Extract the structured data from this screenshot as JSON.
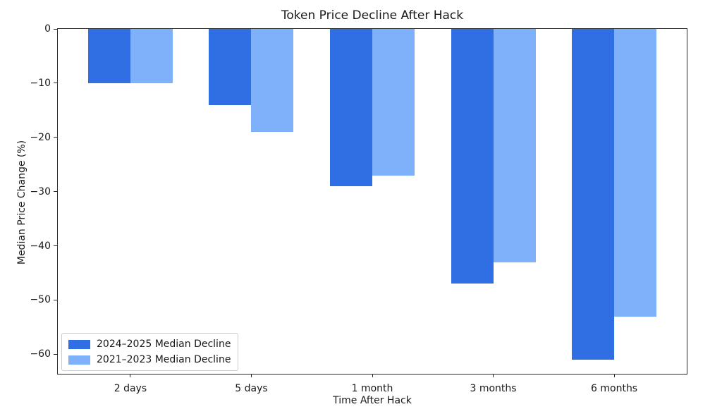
{
  "chart_data": {
    "type": "bar",
    "title": "Token Price Decline After Hack",
    "xlabel": "Time After Hack",
    "ylabel": "Median Price Change (%)",
    "categories": [
      "2 days",
      "5 days",
      "1 month",
      "3 months",
      "6 months"
    ],
    "series": [
      {
        "name": "2024–2025 Median Decline",
        "color": "#2F6EE3",
        "values": [
          -10,
          -14,
          -29,
          -47,
          -61
        ]
      },
      {
        "name": "2021–2023 Median Decline",
        "color": "#7FB1FA",
        "values": [
          -10,
          -19,
          -27,
          -43,
          -53
        ]
      }
    ],
    "ylim": [
      -63.6,
      0
    ],
    "yticks": [
      0,
      -10,
      -20,
      -30,
      -40,
      -50,
      -60
    ],
    "ytick_labels": [
      "0",
      "−10",
      "−20",
      "−30",
      "−40",
      "−50",
      "−60"
    ],
    "grid": false,
    "legend_position": "lower left",
    "bar_width_fraction": 0.35,
    "x_axis_span": 5.2,
    "x_inner_offset": 0.6
  }
}
